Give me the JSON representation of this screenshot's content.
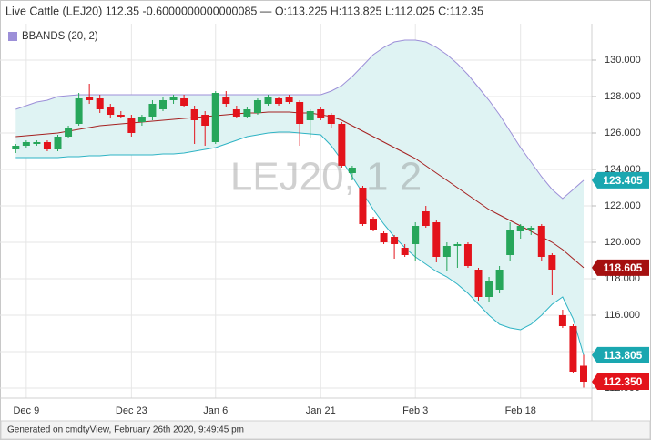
{
  "chart_data": {
    "type": "candlestick",
    "title": "Live Cattle (LEJ20) 112.35 -0.6000000000000085 — O:113.225 H:113.825 L:112.025 C:112.35",
    "indicator": "BBANDS (20, 2)",
    "indicator_color": "#9c8fd8",
    "watermark": "LEJ20, 1 2",
    "footer": "Generated on cmdtyView, February 26th 2020, 9:49:45 pm",
    "categories": [
      null,
      "Dec 9",
      null,
      null,
      null,
      null,
      null,
      null,
      null,
      null,
      null,
      "Dec 23",
      null,
      null,
      null,
      null,
      null,
      null,
      null,
      "Jan 6",
      null,
      null,
      null,
      null,
      null,
      null,
      null,
      null,
      null,
      "Jan 21",
      null,
      null,
      null,
      null,
      null,
      null,
      null,
      null,
      "Feb 3",
      null,
      null,
      null,
      null,
      null,
      null,
      null,
      null,
      null,
      "Feb 18",
      null,
      null,
      null,
      null,
      null,
      null
    ],
    "open": [
      125.1,
      125.3,
      125.4,
      125.5,
      125.1,
      125.8,
      126.5,
      128.0,
      127.9,
      127.4,
      127.0,
      126.8,
      126.6,
      126.9,
      127.3,
      127.8,
      127.9,
      127.3,
      127.0,
      125.5,
      128.0,
      127.3,
      126.9,
      127.1,
      127.6,
      127.9,
      128.0,
      127.7,
      126.7,
      127.3,
      127.0,
      126.5,
      123.8,
      123.0,
      121.3,
      120.5,
      120.3,
      119.7,
      119.9,
      121.7,
      121.1,
      119.2,
      119.8,
      119.9,
      118.5,
      117.0,
      117.4,
      119.3,
      120.6,
      120.7,
      120.9,
      119.3,
      116.0,
      115.4,
      113.225
    ],
    "high": [
      125.4,
      125.6,
      125.6,
      125.6,
      125.9,
      126.4,
      128.2,
      128.7,
      128.1,
      127.6,
      127.2,
      127.0,
      127.0,
      127.8,
      128.0,
      128.1,
      128.1,
      127.5,
      127.2,
      128.3,
      128.3,
      127.5,
      127.4,
      127.9,
      128.1,
      128.0,
      128.1,
      127.8,
      127.3,
      127.4,
      127.1,
      126.6,
      124.2,
      123.1,
      121.4,
      120.6,
      120.4,
      119.9,
      121.1,
      122.0,
      121.2,
      120.0,
      120.0,
      120.0,
      118.6,
      118.1,
      118.7,
      121.1,
      121.0,
      120.9,
      121.0,
      119.4,
      116.3,
      115.5,
      113.825
    ],
    "low": [
      124.9,
      125.2,
      125.3,
      125.0,
      125.0,
      125.7,
      126.4,
      127.6,
      127.1,
      126.8,
      126.8,
      125.8,
      126.4,
      126.7,
      127.2,
      127.6,
      127.4,
      125.4,
      125.3,
      125.4,
      127.4,
      126.8,
      126.8,
      127.0,
      127.5,
      127.5,
      127.6,
      125.3,
      125.7,
      126.7,
      126.3,
      124.1,
      123.4,
      120.9,
      120.6,
      119.9,
      119.1,
      119.2,
      119.0,
      120.8,
      118.9,
      118.4,
      118.6,
      118.6,
      116.8,
      116.7,
      117.2,
      119.0,
      120.2,
      120.4,
      119.0,
      117.1,
      115.3,
      112.8,
      112.025
    ],
    "close": [
      125.3,
      125.5,
      125.5,
      125.1,
      125.8,
      126.3,
      127.9,
      127.8,
      127.3,
      127.0,
      126.9,
      126.0,
      126.9,
      127.6,
      127.8,
      128.0,
      127.5,
      126.7,
      126.4,
      128.2,
      127.6,
      126.9,
      127.3,
      127.8,
      128.0,
      127.6,
      127.7,
      126.5,
      127.2,
      126.8,
      126.5,
      124.2,
      124.1,
      121.0,
      120.7,
      120.0,
      119.9,
      119.3,
      120.9,
      120.9,
      119.2,
      119.8,
      119.9,
      118.7,
      117.0,
      117.9,
      118.5,
      120.7,
      120.9,
      120.8,
      119.2,
      118.5,
      115.4,
      112.9,
      112.35
    ],
    "close_label": "112.350",
    "up_color": "#27a65a",
    "down_color": "#e3131b",
    "bands": {
      "fill": "#dff3f3",
      "upper": {
        "color": "#9c8fd8",
        "values": [
          127.3,
          127.5,
          127.7,
          127.8,
          128.0,
          128.05,
          128.1,
          128.1,
          128.1,
          128.1,
          128.1,
          128.1,
          128.1,
          128.1,
          128.1,
          128.1,
          128.1,
          128.1,
          128.1,
          128.1,
          128.1,
          128.1,
          128.1,
          128.1,
          128.1,
          128.1,
          128.1,
          128.1,
          128.1,
          128.1,
          128.3,
          128.6,
          129.1,
          129.7,
          130.3,
          130.7,
          131.0,
          131.1,
          131.1,
          131.0,
          130.7,
          130.3,
          129.8,
          129.2,
          128.5,
          127.8,
          127.0,
          126.1,
          125.2,
          124.4,
          123.6,
          122.9,
          122.4,
          122.9,
          123.405
        ],
        "label_color": "#1aa7b0"
      },
      "middle": {
        "color": "#a52020",
        "values": [
          125.8,
          125.85,
          125.9,
          125.95,
          126.0,
          126.1,
          126.2,
          126.3,
          126.4,
          126.45,
          126.5,
          126.55,
          126.6,
          126.65,
          126.7,
          126.75,
          126.8,
          126.85,
          126.9,
          126.95,
          127.0,
          127.05,
          127.1,
          127.1,
          127.15,
          127.15,
          127.15,
          127.1,
          127.1,
          127.0,
          126.9,
          126.7,
          126.4,
          126.1,
          125.8,
          125.5,
          125.2,
          124.9,
          124.6,
          124.2,
          123.8,
          123.4,
          123.0,
          122.6,
          122.2,
          121.8,
          121.5,
          121.2,
          120.9,
          120.6,
          120.3,
          120.0,
          119.6,
          119.1,
          118.605
        ],
        "label_color": "#a51010"
      },
      "lower": {
        "color": "#2eb3c4",
        "values": [
          124.65,
          124.65,
          124.65,
          124.65,
          124.65,
          124.7,
          124.7,
          124.75,
          124.75,
          124.8,
          124.8,
          124.8,
          124.8,
          124.8,
          124.85,
          124.85,
          124.9,
          125.0,
          125.1,
          125.2,
          125.4,
          125.6,
          125.8,
          125.9,
          126.0,
          126.05,
          126.05,
          126.0,
          125.95,
          125.9,
          125.3,
          124.5,
          123.6,
          122.7,
          121.8,
          121.0,
          120.3,
          119.7,
          119.2,
          118.8,
          118.4,
          118.1,
          117.7,
          117.2,
          116.6,
          116.0,
          115.5,
          115.3,
          115.2,
          115.5,
          116.0,
          116.6,
          117.0,
          115.8,
          113.805
        ],
        "label_color": "#1aa7b0"
      }
    },
    "ylim": [
      111.45,
      131.05
    ],
    "yticks": [
      {
        "value": 112,
        "label": "112.000"
      },
      {
        "value": 114,
        "label": "114.000"
      },
      {
        "value": 116,
        "label": "116.000"
      },
      {
        "value": 118,
        "label": "118.000"
      },
      {
        "value": 120,
        "label": "120.000"
      },
      {
        "value": 122,
        "label": "122.000"
      },
      {
        "value": 124,
        "label": "124.000"
      },
      {
        "value": 126,
        "label": "126.000"
      },
      {
        "value": 128,
        "label": "128.000"
      },
      {
        "value": 130,
        "label": "130.000"
      }
    ],
    "grid": true
  }
}
